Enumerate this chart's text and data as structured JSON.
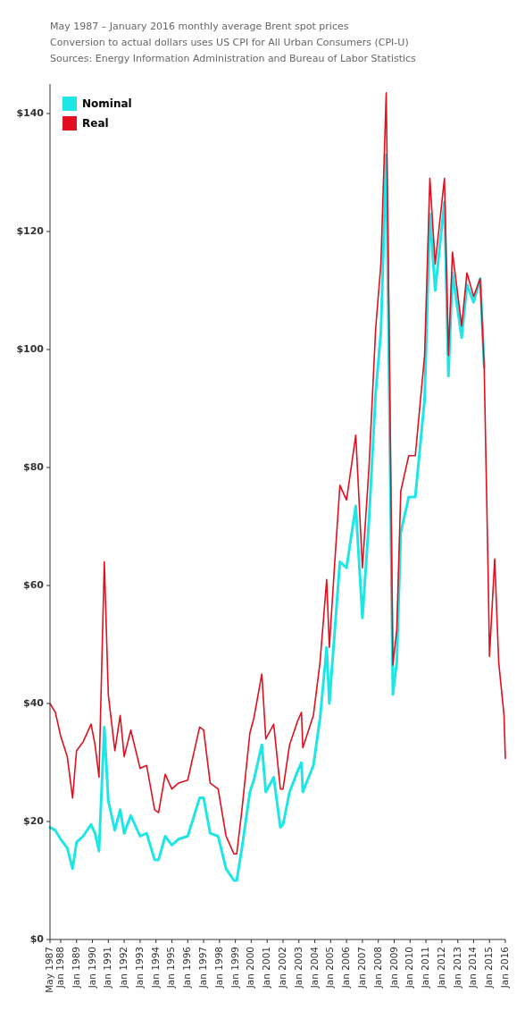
{
  "chart_data": {
    "type": "line",
    "legend": "top left",
    "marker": "none",
    "line_style": "solid",
    "grid": false,
    "xlim": [
      "1987-05",
      "2016-01"
    ],
    "xticks": [
      {
        "value": "1987-05",
        "label": "May 1987"
      },
      {
        "value": "1988-01",
        "label": "Jan 1988"
      },
      {
        "value": "1989-01",
        "label": "Jan 1989"
      },
      {
        "value": "1990-01",
        "label": "Jan 1990"
      },
      {
        "value": "1991-01",
        "label": "Jan 1991"
      },
      {
        "value": "1992-01",
        "label": "Jan 1992"
      },
      {
        "value": "1993-01",
        "label": "Jan 1993"
      },
      {
        "value": "1994-01",
        "label": "Jan 1994"
      },
      {
        "value": "1995-01",
        "label": "Jan 1995"
      },
      {
        "value": "1996-01",
        "label": "Jan 1996"
      },
      {
        "value": "1997-01",
        "label": "Jan 1997"
      },
      {
        "value": "1998-01",
        "label": "Jan 1998"
      },
      {
        "value": "1999-01",
        "label": "Jan 1999"
      },
      {
        "value": "2000-01",
        "label": "Jan 2000"
      },
      {
        "value": "2001-01",
        "label": "Jan 2001"
      },
      {
        "value": "2002-01",
        "label": "Jan 2002"
      },
      {
        "value": "2003-01",
        "label": "Jan 2003"
      },
      {
        "value": "2004-01",
        "label": "Jan 2004"
      },
      {
        "value": "2005-01",
        "label": "Jan 2005"
      },
      {
        "value": "2006-01",
        "label": "Jan 2006"
      },
      {
        "value": "2007-01",
        "label": "Jan 2007"
      },
      {
        "value": "2008-01",
        "label": "Jan 2008"
      },
      {
        "value": "2009-01",
        "label": "Jan 2009"
      },
      {
        "value": "2010-01",
        "label": "Jan 2010"
      },
      {
        "value": "2011-01",
        "label": "Jan 2011"
      },
      {
        "value": "2012-01",
        "label": "Jan 2012"
      },
      {
        "value": "2013-01",
        "label": "Jan 2013"
      },
      {
        "value": "2014-01",
        "label": "Jan 2014"
      },
      {
        "value": "2015-01",
        "label": "Jan 2015"
      },
      {
        "value": "2016-01",
        "label": "Jan 2016"
      }
    ],
    "ylim": [
      0,
      145
    ],
    "yticks": [
      {
        "value": 0,
        "label": "$0"
      },
      {
        "value": 20,
        "label": "$20"
      },
      {
        "value": 40,
        "label": "$40"
      },
      {
        "value": 60,
        "label": "$60"
      },
      {
        "value": 80,
        "label": "$80"
      },
      {
        "value": 100,
        "label": "$100"
      },
      {
        "value": 120,
        "label": "$120"
      },
      {
        "value": 140,
        "label": "$140"
      }
    ],
    "x": [
      "1987-05",
      "1987-09",
      "1988-01",
      "1988-06",
      "1988-10",
      "1989-01",
      "1989-06",
      "1989-12",
      "1990-03",
      "1990-06",
      "1990-10",
      "1991-01",
      "1991-06",
      "1991-10",
      "1992-01",
      "1992-06",
      "1993-01",
      "1993-06",
      "1993-12",
      "1994-03",
      "1994-08",
      "1995-01",
      "1995-06",
      "1996-01",
      "1996-10",
      "1997-01",
      "1997-06",
      "1997-12",
      "1998-06",
      "1998-12",
      "1999-02",
      "1999-06",
      "1999-12",
      "2000-03",
      "2000-09",
      "2000-12",
      "2001-06",
      "2001-11",
      "2002-01",
      "2002-06",
      "2002-12",
      "2003-03",
      "2003-04",
      "2003-12",
      "2004-05",
      "2004-10",
      "2004-12",
      "2005-04",
      "2005-08",
      "2006-01",
      "2006-08",
      "2007-01",
      "2007-06",
      "2007-11",
      "2008-03",
      "2008-07",
      "2008-09",
      "2008-12",
      "2009-03",
      "2009-06",
      "2009-12",
      "2010-05",
      "2010-12",
      "2011-04",
      "2011-08",
      "2012-03",
      "2012-06",
      "2012-09",
      "2013-04",
      "2013-08",
      "2014-01",
      "2014-06",
      "2014-09",
      "2014-12",
      "2015-01",
      "2015-05",
      "2015-08",
      "2015-12",
      "2016-01"
    ],
    "series": [
      {
        "name": "Nominal",
        "color": "#1ee6e6",
        "values": [
          19,
          18.5,
          17,
          15.5,
          12,
          16.5,
          17.5,
          19.5,
          18,
          15,
          36,
          23.5,
          18.5,
          22,
          18,
          21,
          17.5,
          18,
          13.5,
          13.5,
          17.5,
          16,
          17,
          17.5,
          24,
          24,
          18,
          17.5,
          12,
          10,
          10,
          15.5,
          25,
          27,
          33,
          25,
          27.5,
          19,
          19.5,
          25,
          28.5,
          30,
          25,
          29.5,
          37.5,
          49.5,
          40,
          52,
          64,
          63,
          73.5,
          54.5,
          71,
          92.5,
          103,
          133,
          98,
          41.5,
          47,
          69,
          75,
          75,
          91.5,
          123,
          110,
          125,
          95.5,
          113,
          102,
          111,
          108,
          112,
          97,
          null,
          null,
          null,
          null,
          null,
          null
        ]
      },
      {
        "name": "Real",
        "color": "#e01020",
        "values": [
          40,
          38.5,
          34.5,
          31,
          24,
          32,
          33.5,
          36.5,
          33,
          27.5,
          64,
          41.5,
          32,
          38,
          31,
          35.5,
          29,
          29.5,
          22,
          21.5,
          28,
          25.5,
          26.5,
          27,
          36,
          35.5,
          26.5,
          25.5,
          17.5,
          14.5,
          14.5,
          22,
          35,
          37.5,
          45,
          34,
          36.5,
          25.5,
          25.5,
          33,
          37,
          38.5,
          32.5,
          38,
          47,
          61,
          49.5,
          63.5,
          77,
          74.5,
          85.5,
          63,
          80,
          103.5,
          114.5,
          143.5,
          107,
          46.5,
          52.5,
          76,
          82,
          82,
          99,
          129,
          114.5,
          129,
          99,
          116.5,
          104,
          113,
          109,
          112,
          97,
          62,
          48,
          64.5,
          47,
          38,
          30.7
        ]
      }
    ],
    "annotations": [
      "May 1987 – January 2016 monthly average Brent spot prices",
      "Conversion to actual dollars uses US CPI for All Urban Consumers (CPI-U)",
      "Sources: Energy Information Administration and Bureau of Labor Statistics"
    ]
  }
}
